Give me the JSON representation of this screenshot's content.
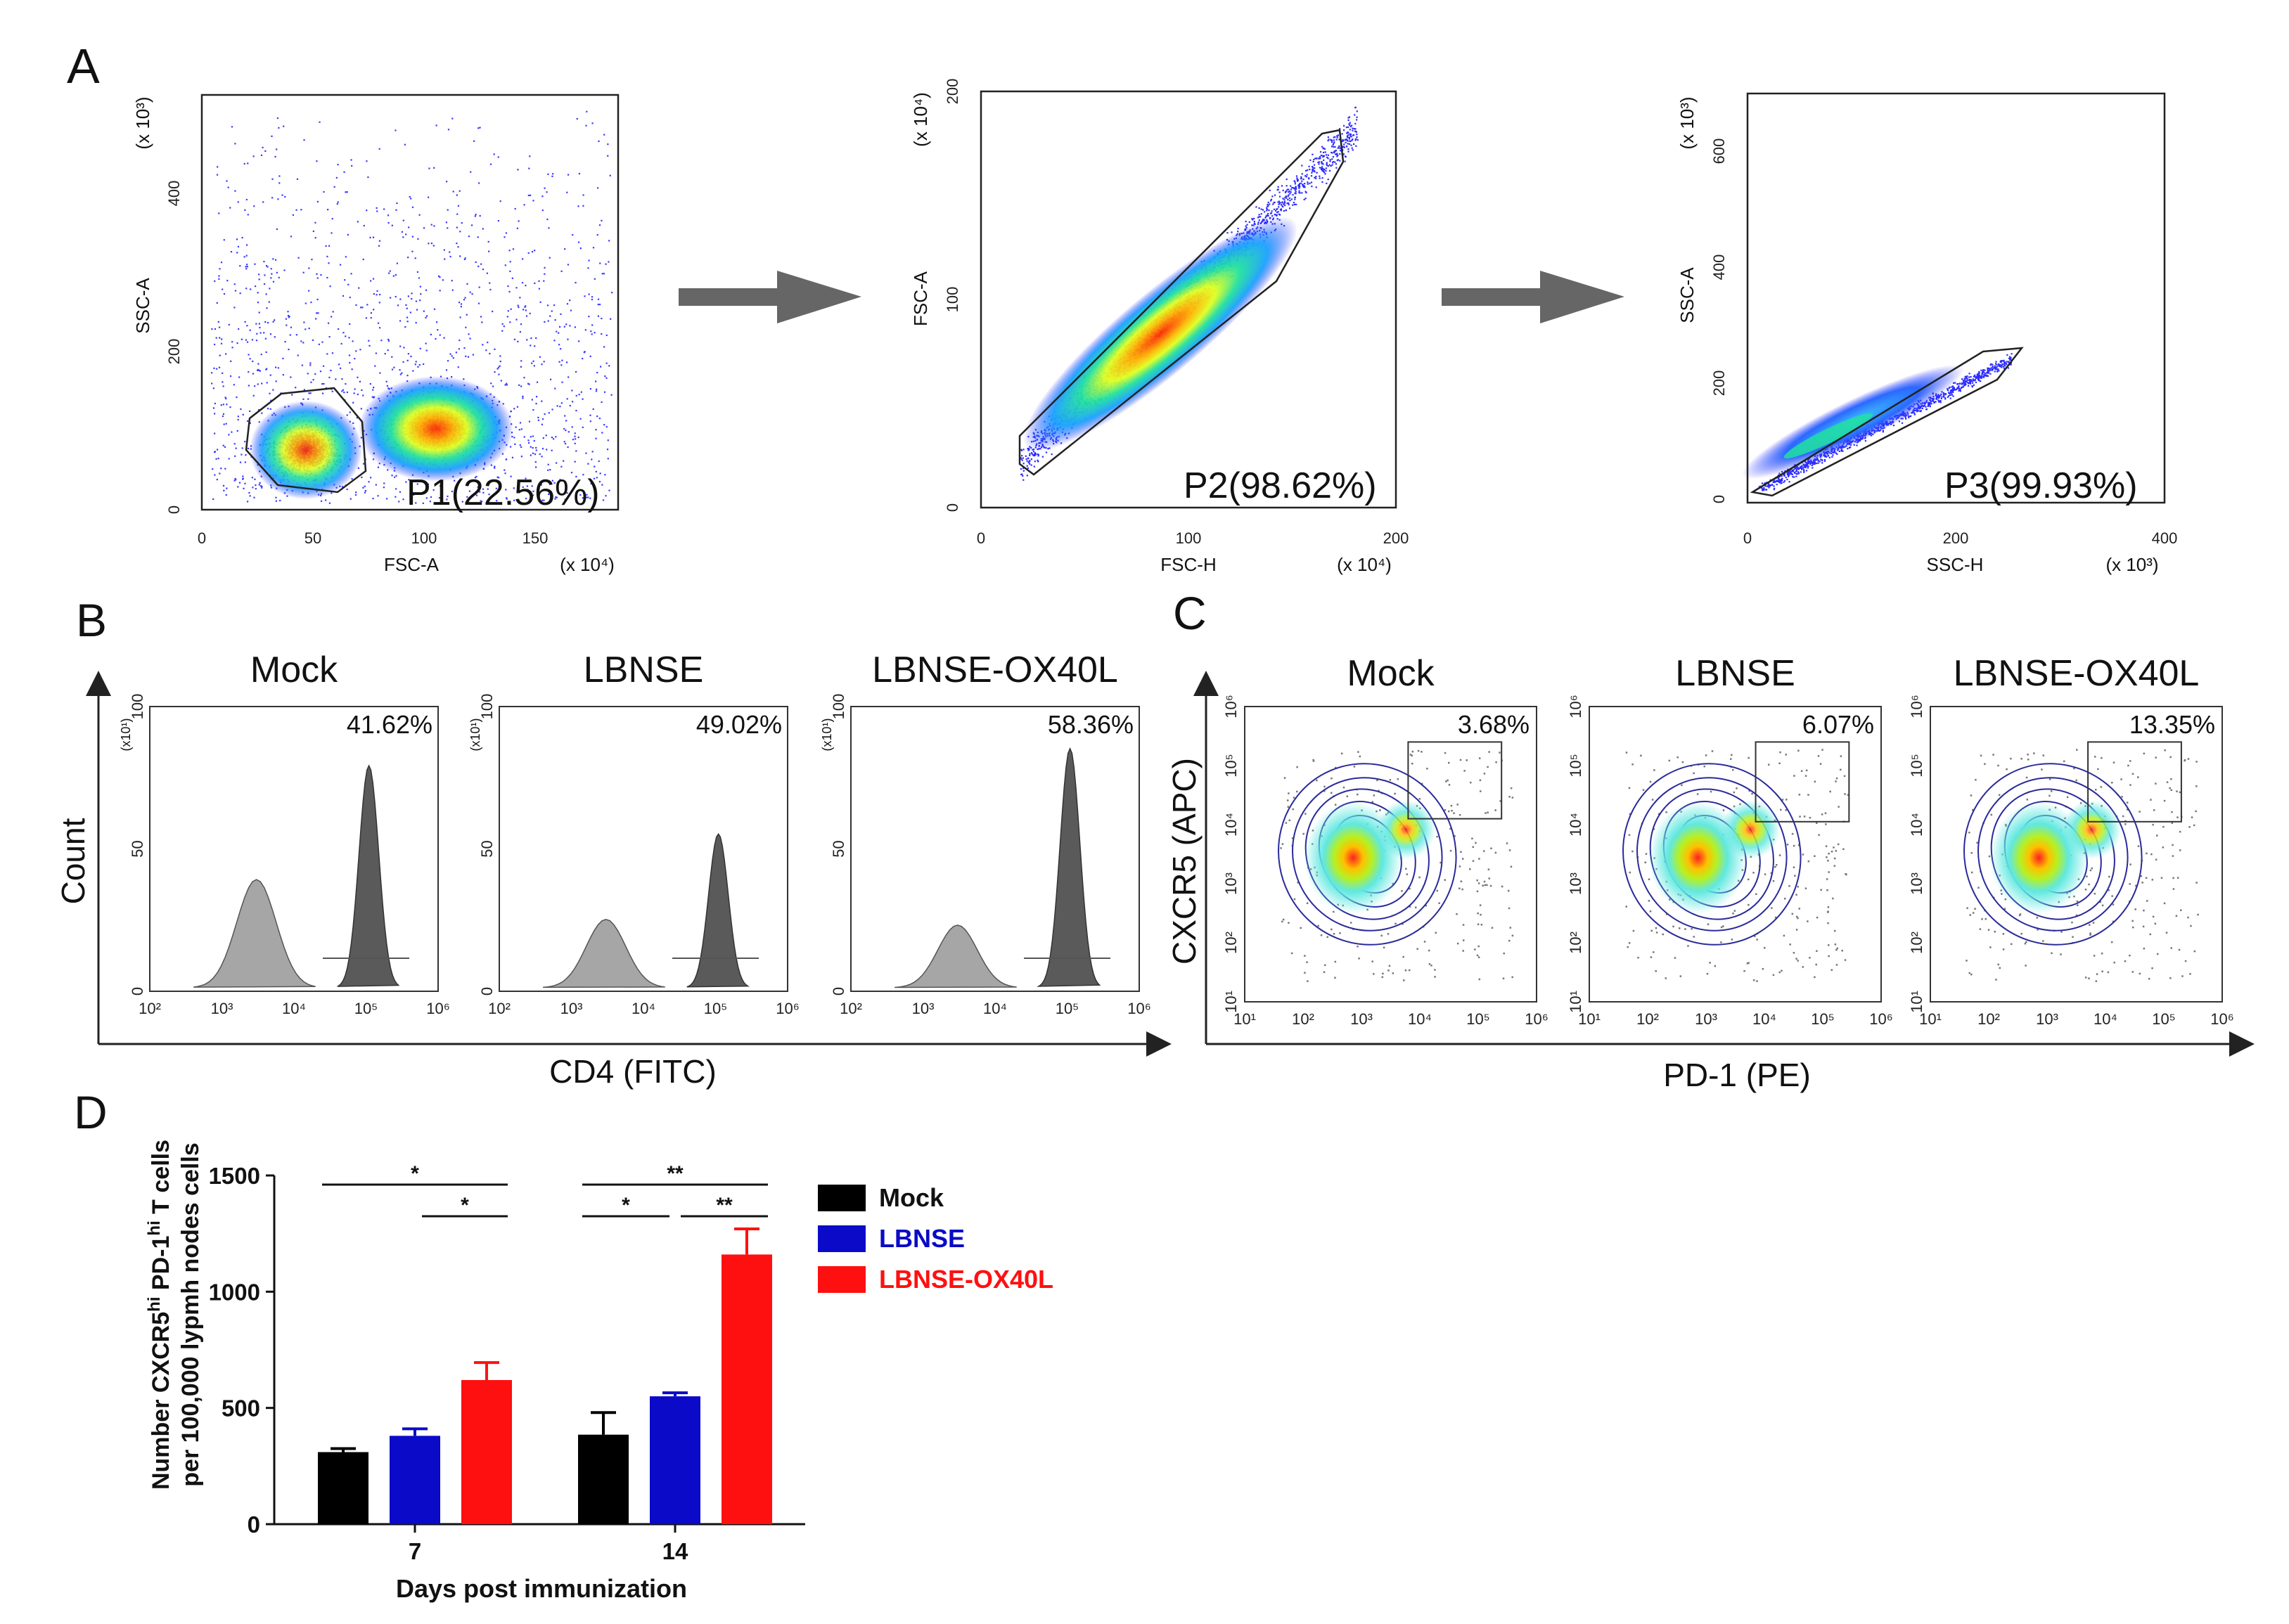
{
  "panels": {
    "A": {
      "letter": "A",
      "plots": [
        {
          "xlabel": "FSC-A",
          "ylabel": "SSC-A",
          "xunit": "(x 10⁴)",
          "yunit": "(x 10³)",
          "xticks": [
            "0",
            "50",
            "100",
            "150"
          ],
          "yticks": [
            "0",
            "200",
            "400"
          ],
          "gate": "P1(22.56%)"
        },
        {
          "xlabel": "FSC-H",
          "ylabel": "FSC-A",
          "xunit": "(x 10⁴)",
          "yunit": "(x 10⁴)",
          "xticks": [
            "0",
            "100",
            "200"
          ],
          "yticks": [
            "0",
            "100",
            "200"
          ],
          "gate": "P2(98.62%)"
        },
        {
          "xlabel": "SSC-H",
          "ylabel": "SSC-A",
          "xunit": "(x 10³)",
          "yunit": "(x 10³)",
          "xticks": [
            "0",
            "200",
            "400"
          ],
          "yticks": [
            "0",
            "200",
            "400",
            "600"
          ],
          "gate": "P3(99.93%)"
        }
      ]
    },
    "B": {
      "letter": "B",
      "ylabel": "Count",
      "xlabel": "CD4 (FITC)",
      "yunit": "(x10¹)",
      "yticks": [
        "0",
        "50",
        "100"
      ],
      "xticks": [
        "10²",
        "10³",
        "10⁴",
        "10⁵",
        "10⁶"
      ],
      "groups": [
        {
          "title": "Mock",
          "pct": "41.62%"
        },
        {
          "title": "LBNSE",
          "pct": "49.02%"
        },
        {
          "title": "LBNSE-OX40L",
          "pct": "58.36%"
        }
      ]
    },
    "C": {
      "letter": "C",
      "ylabel": "CXCR5 (APC)",
      "xlabel": "PD-1 (PE)",
      "xticks": [
        "10¹",
        "10²",
        "10³",
        "10⁴",
        "10⁵",
        "10⁶"
      ],
      "yticks": [
        "10¹",
        "10²",
        "10³",
        "10⁴",
        "10⁵",
        "10⁶"
      ],
      "groups": [
        {
          "title": "Mock",
          "pct": "3.68%"
        },
        {
          "title": "LBNSE",
          "pct": "6.07%"
        },
        {
          "title": "LBNSE-OX40L",
          "pct": "13.35%"
        }
      ]
    },
    "D": {
      "letter": "D"
    }
  },
  "chart_data": {
    "type": "bar",
    "title": "",
    "categories": [
      "7",
      "14"
    ],
    "series": [
      {
        "name": "Mock",
        "values": [
          310,
          385
        ],
        "errors": [
          15,
          95
        ],
        "color": "#000000"
      },
      {
        "name": "LBNSE",
        "values": [
          380,
          550
        ],
        "errors": [
          30,
          15
        ],
        "color": "#0a0ac8"
      },
      {
        "name": "LBNSE-OX40L",
        "values": [
          620,
          1160
        ],
        "errors": [
          75,
          110
        ],
        "color": "#ff1010"
      }
    ],
    "xlabel": "Days post immunization",
    "ylabel_line1": "Number CXCR5",
    "ylabel_sup1": "hi",
    "ylabel_mid": " PD-1",
    "ylabel_sup2": "hi",
    "ylabel_end": " T cells",
    "ylabel_line2": "per 100,000 lypmh nodes cells",
    "ylim": [
      0,
      1500
    ],
    "yticks": [
      0,
      500,
      1000,
      1500
    ],
    "significance": [
      {
        "day": "7",
        "pair": "Mock–LBNSE-OX40L",
        "mark": "*"
      },
      {
        "day": "7",
        "pair": "LBNSE–LBNSE-OX40L",
        "mark": "*"
      },
      {
        "day": "14",
        "pair": "Mock–LBNSE-OX40L",
        "mark": "**"
      },
      {
        "day": "14",
        "pair": "Mock–LBNSE",
        "mark": "*"
      },
      {
        "day": "14",
        "pair": "LBNSE–LBNSE-OX40L",
        "mark": "**"
      }
    ]
  }
}
